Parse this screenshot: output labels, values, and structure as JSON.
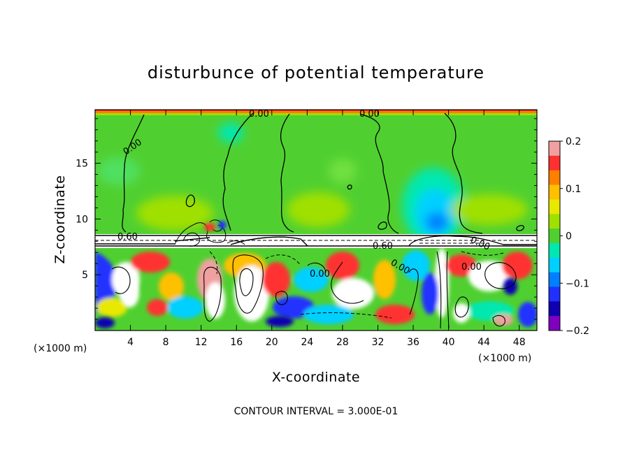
{
  "chart_data": {
    "type": "heatmap",
    "title": "disturbunce of potential temperature",
    "xlabel": "X-coordinate",
    "ylabel": "Z-coordinate",
    "x_unit": "(×1000 m)",
    "x_unit_right": "(×1000 m)",
    "x_ticks": [
      4,
      8,
      12,
      16,
      20,
      24,
      28,
      32,
      36,
      40,
      44,
      48
    ],
    "y_ticks": [
      5,
      10,
      15
    ],
    "xlim": [
      0,
      50
    ],
    "ylim": [
      0,
      19.8
    ],
    "colorbar": {
      "range": [
        -0.2,
        0.2
      ],
      "tick_values": [
        0.2,
        0.1,
        0,
        -0.1,
        -0.2
      ],
      "tick_labels": [
        "0.2",
        "0.1",
        "0",
        "−0.1",
        "−0.2"
      ],
      "colors": [
        "#f0a0a0",
        "#ff3030",
        "#ff8000",
        "#ffc000",
        "#e8e800",
        "#a0e000",
        "#50d030",
        "#00e8b0",
        "#00d0ff",
        "#0080ff",
        "#2030ff",
        "#1000b0",
        "#8000c0"
      ]
    },
    "contour_interval_text": "CONTOUR INTERVAL = 3.000E-01",
    "contour_labels": [
      "0.00",
      "0.00",
      "0.00",
      "0.60",
      "0.60",
      "0.00",
      "0.00",
      "0.00",
      "0.00"
    ],
    "layer_boundary_z": [
      7.5,
      8.7
    ]
  }
}
